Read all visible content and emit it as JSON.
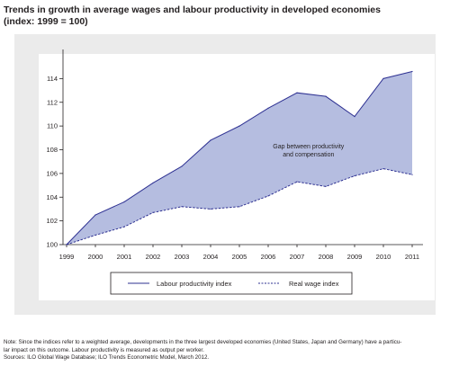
{
  "title_line1": "Trends in growth in average wages and labour productivity in developed economies",
  "title_line2": "(index: 1999 = 100)",
  "chart_data": {
    "type": "line",
    "categories": [
      "1999",
      "2000",
      "2001",
      "2002",
      "2003",
      "2004",
      "2005",
      "2006",
      "2007",
      "2008",
      "2009",
      "2010",
      "2011"
    ],
    "x": [
      1999,
      2000,
      2001,
      2002,
      2003,
      2004,
      2005,
      2006,
      2007,
      2008,
      2009,
      2010,
      2011
    ],
    "series": [
      {
        "name": "Labour productivity index",
        "style": "solid",
        "color": "#2e3192",
        "values": [
          100.0,
          102.5,
          103.6,
          105.2,
          106.6,
          108.8,
          110.0,
          111.5,
          112.8,
          112.5,
          110.8,
          114.0,
          114.6
        ]
      },
      {
        "name": "Real wage index",
        "style": "dashed",
        "color": "#2e3192",
        "values": [
          100.0,
          100.8,
          101.5,
          102.7,
          103.2,
          103.0,
          103.2,
          104.1,
          105.3,
          104.9,
          105.8,
          106.4,
          105.9
        ]
      }
    ],
    "fill_between_color": "#b5bde0",
    "annotation": [
      "Gap between productivity",
      "and compensation"
    ],
    "ylim": [
      100,
      116
    ],
    "yticks": [
      100,
      102,
      104,
      106,
      108,
      110,
      112,
      114
    ],
    "grid": false,
    "legend_position": "bottom"
  },
  "notes": {
    "line1": "Note: Since the indices refer to a weighted average, developments in the three largest developed economies (United States, Japan and Germany) have a particu-",
    "line2": "lar impact on this outcome. Labour productivity is measured as output per worker.",
    "line3": "Sources: ILO Global Wage Database; ILO Trends Econometric Model, March 2012."
  }
}
